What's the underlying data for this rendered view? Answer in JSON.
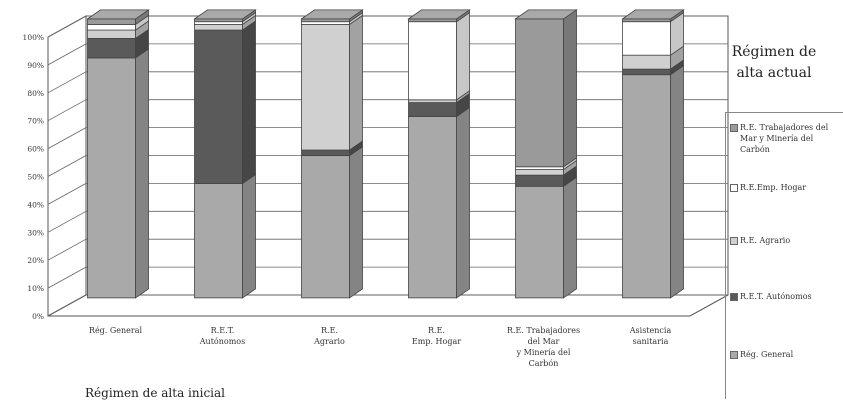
{
  "chart_data": {
    "type": "bar",
    "stacked": true,
    "percent": true,
    "three_d": true,
    "categories": [
      "Rég. General",
      "R.E.T.\nAutónomos",
      "R.E.\nAgrario",
      "R.E.\nEmp. Hogar",
      "R.E. Trabajadores\ndel Mar\ny Minería del\nCarbón",
      "Asistencia\nsanitaria"
    ],
    "series": [
      {
        "name": "Rég. General",
        "color": "#a9a9a9",
        "values": [
          86,
          41,
          51,
          65,
          40,
          80
        ]
      },
      {
        "name": "R.E.T. Autónomos",
        "color": "#5a5a5a",
        "values": [
          7,
          55,
          2,
          5,
          4,
          2
        ]
      },
      {
        "name": "R.E. Agrario",
        "color": "#d0d0d0",
        "values": [
          3,
          2,
          45,
          1,
          2,
          5
        ]
      },
      {
        "name": "R.E.Emp. Hogar",
        "color": "#ffffff",
        "values": [
          2,
          1,
          1,
          28,
          1,
          12
        ]
      },
      {
        "name": "R.E. Trabajadores del Mar y Minería del Carbón",
        "color": "#9a9a9a",
        "values": [
          2,
          1,
          1,
          1,
          53,
          1
        ]
      }
    ],
    "ylim": [
      0,
      100
    ],
    "yticks": [
      "0%",
      "10%",
      "20%",
      "30%",
      "40%",
      "50%",
      "60%",
      "70%",
      "80%",
      "90%",
      "100%"
    ],
    "grid": true,
    "legend_position": "right",
    "legend_title": "Régimen de alta actual",
    "xlabel": "Régimen de alta inicial",
    "legend_order": [
      "R.E. Trabajadores del Mar y Minería del Carbón",
      "R.E.Emp. Hogar",
      "R.E. Agrario",
      "R.E.T. Autónomos",
      "Rég. General"
    ]
  }
}
